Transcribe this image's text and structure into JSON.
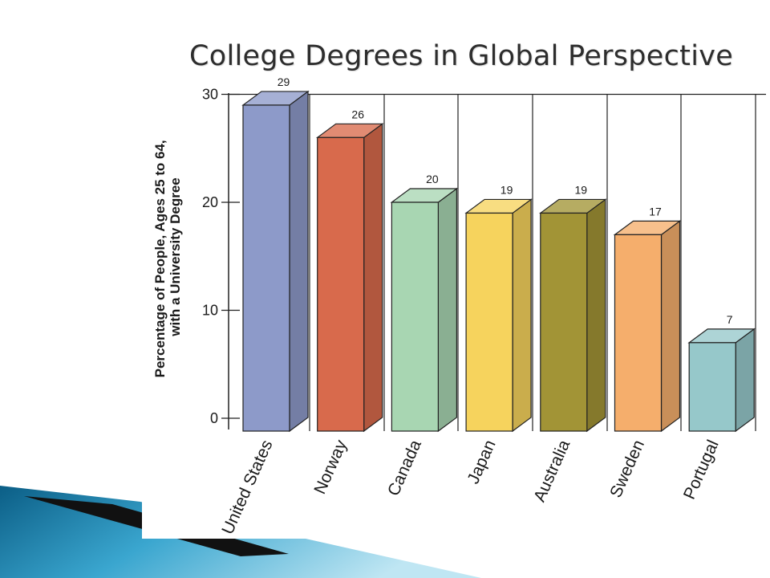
{
  "slide": {
    "title": "College Degrees in Global Perspective"
  },
  "chart_data": {
    "type": "bar",
    "title": "",
    "ylabel_lines": [
      "Percentage of People, Ages 25 to 64,",
      "with a University Degree"
    ],
    "xlabel": "",
    "categories": [
      "United States",
      "Norway",
      "Canada",
      "Japan",
      "Australia",
      "Sweden",
      "Portugal"
    ],
    "values": [
      29,
      26,
      20,
      19,
      19,
      17,
      7
    ],
    "ylim": [
      0,
      30
    ],
    "yticks": [
      0,
      10,
      20,
      30
    ],
    "grid": "vertical separators between categories",
    "style": "3D bars",
    "colors": [
      "#8d9ac9",
      "#d86a4c",
      "#a8d6b2",
      "#f6d35d",
      "#a29436",
      "#f5ae6c",
      "#96c8ca"
    ]
  }
}
